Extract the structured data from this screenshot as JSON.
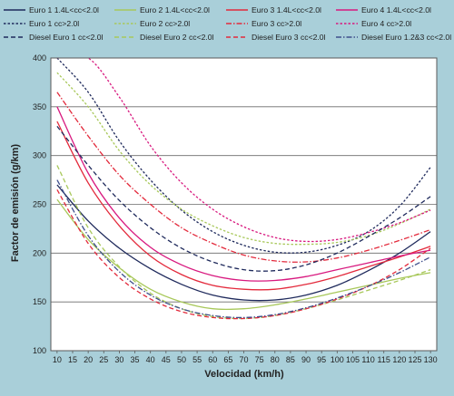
{
  "chart_data": {
    "type": "line",
    "title": "",
    "xlabel": "Velocidad (km/h)",
    "ylabel": "Factor de emisión (g/km)",
    "xlim": [
      8,
      132
    ],
    "ylim": [
      100,
      400
    ],
    "xticks": [
      10,
      15,
      20,
      25,
      30,
      35,
      40,
      45,
      50,
      55,
      60,
      65,
      70,
      75,
      80,
      85,
      90,
      95,
      100,
      105,
      110,
      115,
      120,
      125,
      130
    ],
    "yticks": [
      100,
      150,
      200,
      250,
      300,
      350,
      400
    ],
    "grid": "horizontal",
    "legend_position": "top",
    "series": [
      {
        "name": "Euro 1 1.4L<cc<2.0l",
        "color": "#1f2a5c",
        "dash": "solid",
        "x": [
          10,
          20,
          30,
          40,
          50,
          60,
          70,
          80,
          90,
          100,
          110,
          120,
          130
        ],
        "y": [
          270,
          233,
          205,
          184,
          168,
          157,
          152,
          152,
          157,
          167,
          182,
          200,
          222
        ]
      },
      {
        "name": "Euro 2 1.4L<cc<2.0l",
        "color": "#a8c85a",
        "dash": "solid",
        "x": [
          10,
          20,
          30,
          40,
          50,
          60,
          70,
          80,
          90,
          100,
          110,
          120,
          130
        ],
        "y": [
          255,
          214,
          185,
          163,
          150,
          143,
          143,
          147,
          153,
          160,
          167,
          174,
          180
        ]
      },
      {
        "name": "Euro 3 1.4L<cc<2.0l",
        "color": "#e32a3c",
        "dash": "solid",
        "x": [
          10,
          20,
          30,
          40,
          50,
          60,
          70,
          80,
          90,
          100,
          110,
          120,
          130
        ],
        "y": [
          335,
          272,
          228,
          197,
          178,
          167,
          163,
          163,
          168,
          176,
          186,
          196,
          207
        ]
      },
      {
        "name": "Euro 4 1.4L<cc<2.0l",
        "color": "#d8197f",
        "dash": "solid",
        "x": [
          10,
          20,
          30,
          40,
          50,
          60,
          70,
          80,
          90,
          100,
          110,
          120,
          130
        ],
        "y": [
          350,
          282,
          236,
          206,
          188,
          177,
          172,
          172,
          176,
          183,
          190,
          197,
          203
        ]
      },
      {
        "name": "Euro 1 cc>2.0l",
        "color": "#1f2a5c",
        "dash": "dot",
        "x": [
          10,
          20,
          30,
          40,
          50,
          60,
          70,
          80,
          90,
          100,
          110,
          120,
          130
        ],
        "y": [
          400,
          365,
          315,
          275,
          244,
          222,
          208,
          201,
          201,
          208,
          222,
          248,
          288
        ]
      },
      {
        "name": "Euro 2 cc>2.0l",
        "color": "#a8c85a",
        "dash": "dot",
        "x": [
          10,
          20,
          30,
          40,
          50,
          60,
          70,
          80,
          90,
          100,
          110,
          120,
          130
        ],
        "y": [
          385,
          350,
          305,
          270,
          245,
          228,
          216,
          210,
          209,
          211,
          218,
          230,
          245
        ]
      },
      {
        "name": "Euro 3 cc>2.0l",
        "color": "#e32a3c",
        "dash": "dashdot",
        "x": [
          10,
          20,
          30,
          40,
          50,
          60,
          70,
          80,
          90,
          100,
          110,
          120,
          130
        ],
        "y": [
          365,
          320,
          280,
          250,
          226,
          210,
          198,
          192,
          191,
          195,
          203,
          213,
          224
        ]
      },
      {
        "name": "Euro 4 cc>2.0l",
        "color": "#d8197f",
        "dash": "dot",
        "x": [
          10,
          20,
          30,
          40,
          50,
          60,
          70,
          80,
          90,
          100,
          110,
          120,
          130
        ],
        "y": [
          400,
          400,
          360,
          310,
          272,
          245,
          227,
          216,
          212,
          214,
          221,
          231,
          244
        ]
      },
      {
        "name": "Diesel Euro 1 cc<2.0l",
        "color": "#1f2a5c",
        "dash": "dash",
        "x": [
          10,
          20,
          30,
          40,
          50,
          60,
          70,
          80,
          90,
          100,
          110,
          120,
          130
        ],
        "y": [
          330,
          290,
          254,
          226,
          205,
          191,
          183,
          182,
          188,
          200,
          217,
          236,
          258
        ]
      },
      {
        "name": "Diesel Euro 2 cc<2.0l",
        "color": "#a8c85a",
        "dash": "dash",
        "x": [
          10,
          20,
          30,
          40,
          50,
          60,
          70,
          80,
          90,
          100,
          110,
          120,
          130
        ],
        "y": [
          290,
          226,
          186,
          159,
          143,
          135,
          133,
          136,
          143,
          152,
          162,
          172,
          183
        ]
      },
      {
        "name": "Diesel Euro 3 cc<2.0l",
        "color": "#e32a3c",
        "dash": "dash",
        "x": [
          10,
          20,
          30,
          40,
          50,
          60,
          70,
          80,
          90,
          100,
          110,
          120,
          130
        ],
        "y": [
          265,
          210,
          175,
          153,
          140,
          134,
          133,
          136,
          143,
          153,
          166,
          183,
          205
        ]
      },
      {
        "name": "Diesel Euro 1.2&3 cc<2.0l",
        "color": "#3f4f8c",
        "dash": "dashdot",
        "x": [
          10,
          20,
          30,
          40,
          50,
          60,
          70,
          80,
          90,
          100,
          110,
          120,
          130
        ],
        "y": [
          275,
          218,
          181,
          157,
          143,
          136,
          134,
          137,
          144,
          154,
          166,
          180,
          196
        ]
      }
    ]
  }
}
